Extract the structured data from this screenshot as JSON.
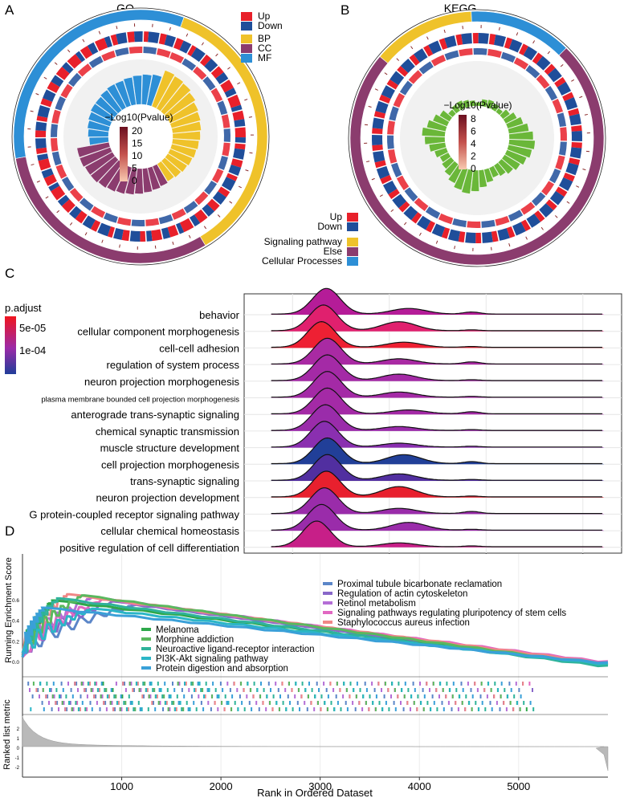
{
  "panels": {
    "a": {
      "letter": "A",
      "title": "GO"
    },
    "b": {
      "letter": "B",
      "title": "KEGG"
    },
    "c": {
      "letter": "C"
    },
    "d": {
      "letter": "D"
    }
  },
  "colors": {
    "up": "#e8202a",
    "down": "#1f4e9a",
    "bp": "#efc22a",
    "cc": "#8b3c6e",
    "mf": "#2d8fd6",
    "signaling": "#efc22a",
    "else": "#8b3c6e",
    "cellular": "#2d8fd6",
    "kegg_bar": "#6ab739"
  },
  "chart_data": [
    {
      "type": "bar",
      "subtype": "circular",
      "title": "GO",
      "legend": {
        "direction": [
          "Up",
          "Down"
        ],
        "ontology": [
          "BP",
          "CC",
          "MF"
        ],
        "gradient_title": "−Log10(Pvalue)",
        "gradient_ticks": [
          "20",
          "15",
          "10",
          "5",
          "0"
        ]
      },
      "groups": [
        {
          "name": "BP",
          "values": [
            16,
            15.5,
            15,
            14,
            13,
            12.5,
            12,
            11.5,
            11,
            10.5,
            10,
            9.5,
            9,
            8.5
          ]
        },
        {
          "name": "CC",
          "values": [
            9,
            9.5,
            10,
            10.5,
            11,
            11.5,
            12,
            12.5,
            13,
            13,
            13.5,
            13.5
          ]
        },
        {
          "name": "MF",
          "values": [
            8,
            8.5,
            9,
            9.5,
            10,
            10,
            10.5,
            11,
            11,
            11.5,
            12,
            12.5,
            13
          ]
        }
      ]
    },
    {
      "type": "bar",
      "subtype": "circular",
      "title": "KEGG",
      "legend": {
        "direction": [
          "Up",
          "Down"
        ],
        "category": [
          "Signaling pathway",
          "Else",
          "Cellular Processes"
        ],
        "gradient_title": "−Log10(Pvalue)",
        "gradient_ticks": [
          "8",
          "6",
          "4",
          "2",
          "0"
        ]
      },
      "groups": [
        {
          "name": "Signaling pathway",
          "values": [
            1.2,
            1.6,
            1.8,
            1.5,
            1.2
          ]
        },
        {
          "name": "Cellular Processes",
          "values": [
            0.8,
            1.5,
            1.7,
            1.4,
            1.0
          ]
        },
        {
          "name": "Else",
          "values": [
            1.8,
            2.6,
            3.4,
            4.2,
            5.0,
            5.4,
            5.0,
            4.4,
            3.8,
            3.2,
            2.6,
            2.2,
            2.8,
            3.6,
            4.4,
            5.0,
            4.6,
            3.8,
            3.0,
            2.4,
            2.0,
            2.6,
            3.4,
            4.2,
            4.8,
            4.0,
            3.2,
            2.4
          ]
        }
      ]
    },
    {
      "type": "ridgeline",
      "xlim": [
        -0.5,
        3.4
      ],
      "xticks": [
        0,
        1,
        2,
        3
      ],
      "legend_title": "p.adjust",
      "legend_ticks": [
        "5e-05",
        "1e-04"
      ],
      "categories": [
        "behavior",
        "cellular component morphogenesis",
        "cell-cell adhesion",
        "regulation of system process",
        "neuron projection morphogenesis",
        "plasma membrane bounded cell projection morphogenesis",
        "anterograde trans-synaptic signaling",
        "chemical synaptic transmission",
        "muscle structure development",
        "cell projection morphogenesis",
        "trans-synaptic signaling",
        "neuron projection development",
        "G protein-coupled receptor signaling pathway",
        "cellular chemical homeostasis",
        "positive regulation of cell differentiation"
      ],
      "fill": [
        "#b51c98",
        "#e0206e",
        "#ee2033",
        "#a92aa3",
        "#a42aa6",
        "#a42aa6",
        "#a42aa6",
        "#9a2caa",
        "#8a2fb0",
        "#213f98",
        "#512fa0",
        "#e8202e",
        "#9a2caa",
        "#9a2caa",
        "#c71f88"
      ],
      "peak": [
        0.35,
        0.32,
        0.3,
        0.36,
        0.36,
        0.36,
        0.36,
        0.34,
        0.33,
        0.36,
        0.36,
        0.35,
        0.33,
        0.3,
        0.25
      ],
      "secondary": [
        [
          1.2,
          0.22
        ],
        [
          1.1,
          0.35
        ],
        [
          1.15,
          0.2
        ],
        [
          1.1,
          0.2
        ],
        [
          1.1,
          0.25
        ],
        [
          1.1,
          0.2
        ],
        [
          1.2,
          0.15
        ],
        [
          1.1,
          0.15
        ],
        [
          1.1,
          0.15
        ],
        [
          1.15,
          0.35
        ],
        [
          1.1,
          0.25
        ],
        [
          1.1,
          0.4
        ],
        [
          1.1,
          0.2
        ],
        [
          1.2,
          0.3
        ],
        [
          1.1,
          0.15
        ]
      ]
    },
    {
      "type": "line",
      "subtype": "gsea",
      "xlabel": "Rank in Ordered Dataset",
      "ylabel_top": "Running Enrichment Score",
      "ylabel_bottom": "Ranked list metric",
      "xlim": [
        0,
        5900
      ],
      "xticks": [
        1000,
        2000,
        3000,
        4000,
        5000
      ],
      "yticks_top": [
        "0.6",
        "0.4",
        "0.2",
        "0.0"
      ],
      "ylim_top": [
        -0.02,
        0.7
      ],
      "yticks_bottom": [
        "2",
        "1",
        "0",
        "-1",
        "-2"
      ],
      "series": [
        {
          "name": "Proximal tubule bicarbonate reclamation",
          "color": "#5b86c8",
          "peak": [
            1150,
            0.56
          ],
          "end": -0.02
        },
        {
          "name": "Regulation of actin cytoskeleton",
          "color": "#8867c9",
          "peak": [
            900,
            0.59
          ],
          "end": -0.01
        },
        {
          "name": "Retinol metabolism",
          "color": "#b46ed6",
          "peak": [
            700,
            0.63
          ],
          "end": 0.0
        },
        {
          "name": "Signaling pathways regulating pluripotency of stem cells",
          "color": "#e168c2",
          "peak": [
            800,
            0.61
          ],
          "end": 0.01
        },
        {
          "name": "Staphylococcus aureus infection",
          "color": "#f08787",
          "peak": [
            450,
            0.66
          ],
          "end": 0.0
        },
        {
          "name": "Melanoma",
          "color": "#2ea84a",
          "peak": [
            300,
            0.6
          ],
          "end": -0.01
        },
        {
          "name": "Morphine addiction",
          "color": "#5ab85e",
          "peak": [
            600,
            0.65
          ],
          "end": -0.02
        },
        {
          "name": "Neuroactive ligand-receptor interaction",
          "color": "#2fb39a",
          "peak": [
            350,
            0.62
          ],
          "end": -0.03
        },
        {
          "name": "PI3K-Akt signaling pathway",
          "color": "#2bb6c7",
          "peak": [
            700,
            0.52
          ],
          "end": -0.01
        },
        {
          "name": "Protein digestion and absorption",
          "color": "#3aa0d8",
          "peak": [
            200,
            0.53
          ],
          "end": 0.0
        }
      ]
    }
  ]
}
